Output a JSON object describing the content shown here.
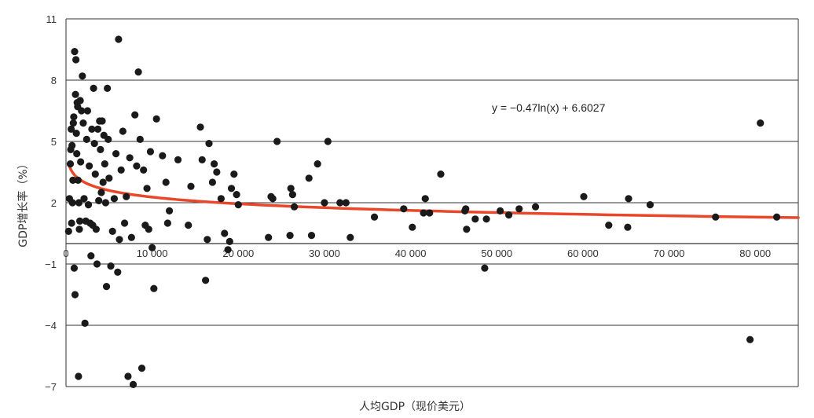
{
  "chart_data": {
    "type": "scatter",
    "xlabel": "人均GDP（现价美元）",
    "ylabel": "GDP增长率（%）",
    "xlim": [
      0,
      85000
    ],
    "ylim": [
      -7,
      11
    ],
    "x_ticks": [
      0,
      10000,
      20000,
      30000,
      40000,
      50000,
      60000,
      70000,
      80000
    ],
    "x_tick_labels": [
      "0",
      "10 000",
      "20 000",
      "30 000",
      "40 000",
      "50 000",
      "60 000",
      "70 000",
      "80 000"
    ],
    "y_ticks": [
      -7,
      -4,
      -1,
      2,
      5,
      8,
      11
    ],
    "y_tick_labels": [
      "−7",
      "−4",
      "−1",
      "2",
      "5",
      "8",
      "11"
    ],
    "grid": "horizontal",
    "annotation": "y = −0.47ln(x) + 6.6027",
    "colors": {
      "points": "#1a1a1a",
      "trend": "#e8472b",
      "grid": "#333333"
    },
    "trendline": {
      "type": "logarithmic",
      "a": -0.47,
      "b": 6.6027,
      "x_from": 300,
      "x_to": 85000
    },
    "points": [
      [
        300,
        0.6
      ],
      [
        400,
        2.2
      ],
      [
        500,
        3.9
      ],
      [
        550,
        4.6
      ],
      [
        600,
        5.6
      ],
      [
        650,
        1.0
      ],
      [
        700,
        4.8
      ],
      [
        750,
        2.0
      ],
      [
        800,
        3.1
      ],
      [
        850,
        5.9
      ],
      [
        900,
        6.2
      ],
      [
        950,
        -1.2
      ],
      [
        1000,
        9.4
      ],
      [
        1050,
        -2.5
      ],
      [
        1100,
        7.3
      ],
      [
        1150,
        9.0
      ],
      [
        1200,
        5.4
      ],
      [
        1250,
        4.4
      ],
      [
        1300,
        6.9
      ],
      [
        1350,
        6.7
      ],
      [
        1400,
        3.1
      ],
      [
        1450,
        -6.5
      ],
      [
        1500,
        2.0
      ],
      [
        1550,
        0.7
      ],
      [
        1600,
        1.1
      ],
      [
        1650,
        7.0
      ],
      [
        1700,
        4.0
      ],
      [
        1800,
        6.5
      ],
      [
        1900,
        8.2
      ],
      [
        2000,
        5.9
      ],
      [
        2100,
        2.2
      ],
      [
        2200,
        -3.9
      ],
      [
        2300,
        1.1
      ],
      [
        2400,
        5.1
      ],
      [
        2500,
        6.5
      ],
      [
        2600,
        1.9
      ],
      [
        2700,
        3.8
      ],
      [
        2800,
        1.0
      ],
      [
        2900,
        -0.6
      ],
      [
        3000,
        5.6
      ],
      [
        3100,
        0.9
      ],
      [
        3200,
        7.6
      ],
      [
        3300,
        4.9
      ],
      [
        3400,
        3.4
      ],
      [
        3500,
        0.7
      ],
      [
        3600,
        -1.0
      ],
      [
        3700,
        5.6
      ],
      [
        3800,
        2.1
      ],
      [
        3900,
        6.0
      ],
      [
        4000,
        4.6
      ],
      [
        4100,
        2.5
      ],
      [
        4200,
        6.0
      ],
      [
        4300,
        3.0
      ],
      [
        4400,
        5.3
      ],
      [
        4500,
        3.9
      ],
      [
        4600,
        2.0
      ],
      [
        4700,
        -2.1
      ],
      [
        4800,
        7.6
      ],
      [
        4900,
        5.1
      ],
      [
        5000,
        3.2
      ],
      [
        5200,
        -1.1
      ],
      [
        5400,
        0.6
      ],
      [
        5600,
        2.2
      ],
      [
        5800,
        4.4
      ],
      [
        6000,
        -1.4
      ],
      [
        6100,
        10.0
      ],
      [
        6200,
        0.2
      ],
      [
        6400,
        3.6
      ],
      [
        6600,
        5.5
      ],
      [
        6800,
        1.0
      ],
      [
        7000,
        2.3
      ],
      [
        7200,
        -6.5
      ],
      [
        7400,
        4.2
      ],
      [
        7600,
        0.3
      ],
      [
        7800,
        -6.9
      ],
      [
        8000,
        6.3
      ],
      [
        8200,
        3.8
      ],
      [
        8400,
        8.4
      ],
      [
        8600,
        5.1
      ],
      [
        8800,
        -6.1
      ],
      [
        9000,
        3.6
      ],
      [
        9200,
        0.9
      ],
      [
        9400,
        2.7
      ],
      [
        9600,
        0.7
      ],
      [
        9800,
        4.5
      ],
      [
        10000,
        -0.2
      ],
      [
        10200,
        -2.2
      ],
      [
        10500,
        6.1
      ],
      [
        11200,
        4.3
      ],
      [
        11600,
        3.0
      ],
      [
        11800,
        1.0
      ],
      [
        12000,
        1.6
      ],
      [
        13000,
        4.1
      ],
      [
        14200,
        0.9
      ],
      [
        14500,
        2.8
      ],
      [
        15600,
        5.7
      ],
      [
        15800,
        4.1
      ],
      [
        16200,
        -1.8
      ],
      [
        16400,
        0.2
      ],
      [
        16600,
        4.9
      ],
      [
        17000,
        3.0
      ],
      [
        17200,
        3.9
      ],
      [
        17500,
        3.5
      ],
      [
        18000,
        2.2
      ],
      [
        18400,
        0.5
      ],
      [
        18800,
        -0.3
      ],
      [
        19000,
        0.1
      ],
      [
        19200,
        2.7
      ],
      [
        19500,
        3.4
      ],
      [
        19800,
        2.4
      ],
      [
        20000,
        1.9
      ],
      [
        23500,
        0.3
      ],
      [
        23800,
        2.3
      ],
      [
        24000,
        2.2
      ],
      [
        24500,
        5.0
      ],
      [
        26000,
        0.4
      ],
      [
        26100,
        2.7
      ],
      [
        26300,
        2.4
      ],
      [
        26500,
        1.8
      ],
      [
        28200,
        3.2
      ],
      [
        28500,
        0.4
      ],
      [
        29200,
        3.9
      ],
      [
        30000,
        2.0
      ],
      [
        30400,
        5.0
      ],
      [
        31800,
        2.0
      ],
      [
        32500,
        2.0
      ],
      [
        33000,
        0.3
      ],
      [
        35800,
        1.3
      ],
      [
        39200,
        1.7
      ],
      [
        40200,
        0.8
      ],
      [
        41500,
        1.5
      ],
      [
        41700,
        2.2
      ],
      [
        42200,
        1.5
      ],
      [
        43500,
        3.4
      ],
      [
        46300,
        1.6
      ],
      [
        46400,
        1.7
      ],
      [
        46500,
        0.7
      ],
      [
        47500,
        1.2
      ],
      [
        48600,
        -1.2
      ],
      [
        48800,
        1.2
      ],
      [
        50400,
        1.6
      ],
      [
        51400,
        1.4
      ],
      [
        52600,
        1.7
      ],
      [
        54500,
        1.8
      ],
      [
        60100,
        2.3
      ],
      [
        63000,
        0.9
      ],
      [
        65200,
        0.8
      ],
      [
        65300,
        2.2
      ],
      [
        67800,
        1.9
      ],
      [
        75400,
        1.3
      ],
      [
        79400,
        -4.7
      ],
      [
        80600,
        5.9
      ],
      [
        82500,
        1.3
      ]
    ]
  }
}
